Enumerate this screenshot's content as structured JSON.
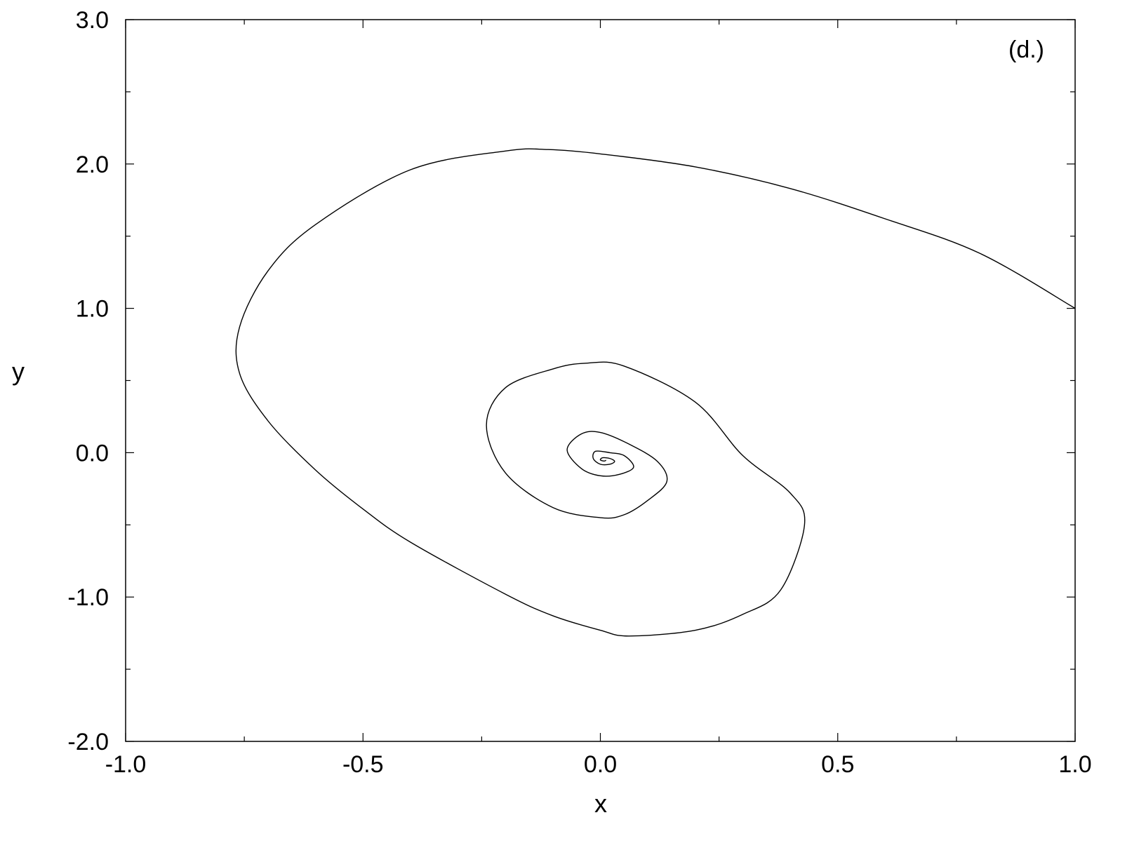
{
  "chart_data": {
    "type": "line",
    "xlabel": "x",
    "ylabel": "y",
    "xlim": [
      -1.0,
      1.0
    ],
    "ylim": [
      -2.0,
      3.0
    ],
    "x_ticks": [
      -1.0,
      -0.5,
      0.0,
      0.5,
      1.0
    ],
    "x_tick_labels": [
      "-1.0",
      "-0.5",
      "0.0",
      "0.5",
      "1.0"
    ],
    "y_ticks": [
      -2.0,
      -1.0,
      0.0,
      1.0,
      2.0,
      3.0
    ],
    "y_tick_labels": [
      "-2.0",
      "-1.0",
      "0.0",
      "1.0",
      "2.0",
      "3.0"
    ],
    "annotation": "(d.)",
    "grid": false,
    "series": [
      {
        "color": "#000000",
        "points": [
          [
            1.0,
            1.0
          ],
          [
            0.8,
            1.38
          ],
          [
            0.6,
            1.62
          ],
          [
            0.4,
            1.83
          ],
          [
            0.2,
            1.98
          ],
          [
            0.0,
            2.07
          ],
          [
            -0.11,
            2.1
          ],
          [
            -0.2,
            2.09
          ],
          [
            -0.4,
            1.96
          ],
          [
            -0.6,
            1.58
          ],
          [
            -0.7,
            1.26
          ],
          [
            -0.76,
            0.87
          ],
          [
            -0.76,
            0.55
          ],
          [
            -0.7,
            0.22
          ],
          [
            -0.6,
            -0.12
          ],
          [
            -0.5,
            -0.39
          ],
          [
            -0.4,
            -0.62
          ],
          [
            -0.2,
            -0.98
          ],
          [
            -0.1,
            -1.13
          ],
          [
            0.0,
            -1.23
          ],
          [
            0.06,
            -1.27
          ],
          [
            0.2,
            -1.23
          ],
          [
            0.3,
            -1.12
          ],
          [
            0.38,
            -0.95
          ],
          [
            0.43,
            -0.5
          ],
          [
            0.4,
            -0.28
          ],
          [
            0.3,
            -0.02
          ],
          [
            0.2,
            0.35
          ],
          [
            0.05,
            0.6
          ],
          [
            -0.03,
            0.62
          ],
          [
            -0.1,
            0.58
          ],
          [
            -0.2,
            0.45
          ],
          [
            -0.24,
            0.19
          ],
          [
            -0.2,
            -0.14
          ],
          [
            -0.1,
            -0.38
          ],
          [
            0.0,
            -0.45
          ],
          [
            0.05,
            -0.43
          ],
          [
            0.1,
            -0.33
          ],
          [
            0.14,
            -0.2
          ],
          [
            0.12,
            -0.06
          ],
          [
            0.06,
            0.06
          ],
          [
            0.0,
            0.14
          ],
          [
            -0.04,
            0.13
          ],
          [
            -0.07,
            0.02
          ],
          [
            -0.04,
            -0.11
          ],
          [
            0.0,
            -0.16
          ],
          [
            0.04,
            -0.15
          ],
          [
            0.07,
            -0.1
          ],
          [
            0.05,
            -0.02
          ],
          [
            0.02,
            0.0
          ],
          [
            -0.01,
            0.01
          ],
          [
            -0.015,
            -0.04
          ],
          [
            0.0,
            -0.08
          ],
          [
            0.02,
            -0.08
          ],
          [
            0.03,
            -0.06
          ],
          [
            0.02,
            -0.04
          ],
          [
            0.005,
            -0.035
          ],
          [
            0.0,
            -0.05
          ],
          [
            0.008,
            -0.058
          ],
          [
            0.012,
            -0.052
          ]
        ]
      }
    ]
  }
}
